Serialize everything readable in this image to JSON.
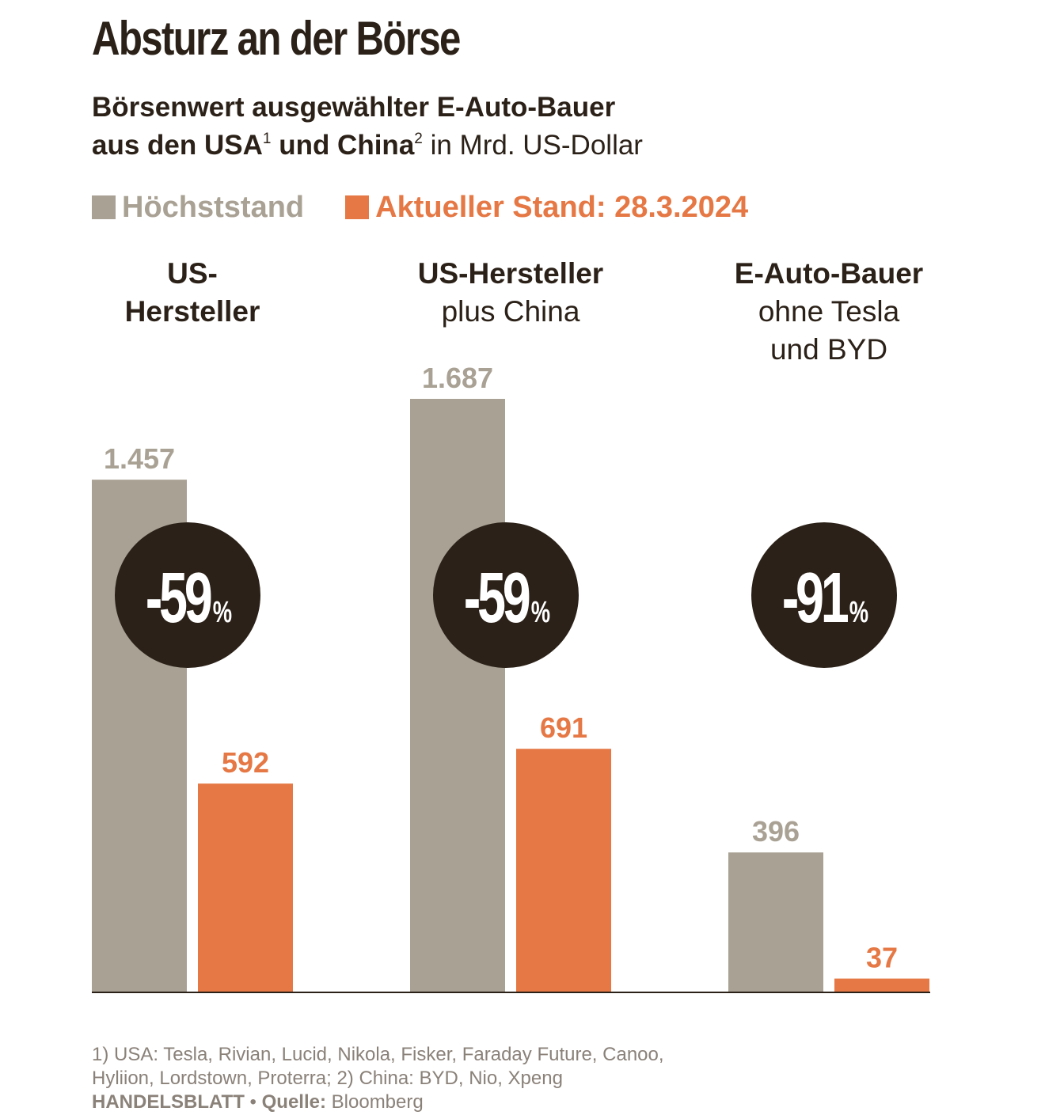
{
  "title": "Absturz an der Börse",
  "subtitle": {
    "line1": "Börsenwert ausgewählter E-Auto-Bauer",
    "line2_bold": "aus den USA",
    "sup1": "1",
    "and_china": " und China",
    "sup2": "2",
    "line2_rest": " in Mrd. US-Dollar"
  },
  "legend": {
    "peak_label": "Höchststand",
    "current_label": "Aktueller Stand: 28.3.2024"
  },
  "colors": {
    "peak": "#a9a194",
    "current": "#e57844",
    "text": "#2b2118",
    "circle": "#2b2118",
    "footnote": "#8a8179"
  },
  "chart_data": {
    "type": "bar",
    "categories": [
      {
        "bold": "US- Hersteller",
        "normal": ""
      },
      {
        "bold": "US-Hersteller",
        "normal": "plus China"
      },
      {
        "bold": "E-Auto-Bauer",
        "normal": "ohne Tesla und BYD"
      }
    ],
    "series": [
      {
        "name": "Höchststand",
        "values": [
          1457,
          1687,
          396
        ],
        "labels": [
          "1.457",
          "1.687",
          "396"
        ]
      },
      {
        "name": "Aktueller Stand: 28.3.2024",
        "values": [
          592,
          691,
          37
        ],
        "labels": [
          "592",
          "691",
          "37"
        ]
      }
    ],
    "changes": [
      {
        "number": "-59",
        "unit": "%"
      },
      {
        "number": "-59",
        "unit": "%"
      },
      {
        "number": "-91",
        "unit": "%"
      }
    ],
    "ylim": [
      0,
      1687
    ]
  },
  "footnote": {
    "line1": "1) USA: Tesla, Rivian, Lucid, Nikola, Fisker, Faraday Future, Canoo,",
    "line2": "Hyliion, Lordstown, Proterra; 2) China: BYD, Nio, Xpeng",
    "publisher": "HANDELSBLATT",
    "separator": " • ",
    "source_label": "Quelle:",
    "source": " Bloomberg"
  }
}
